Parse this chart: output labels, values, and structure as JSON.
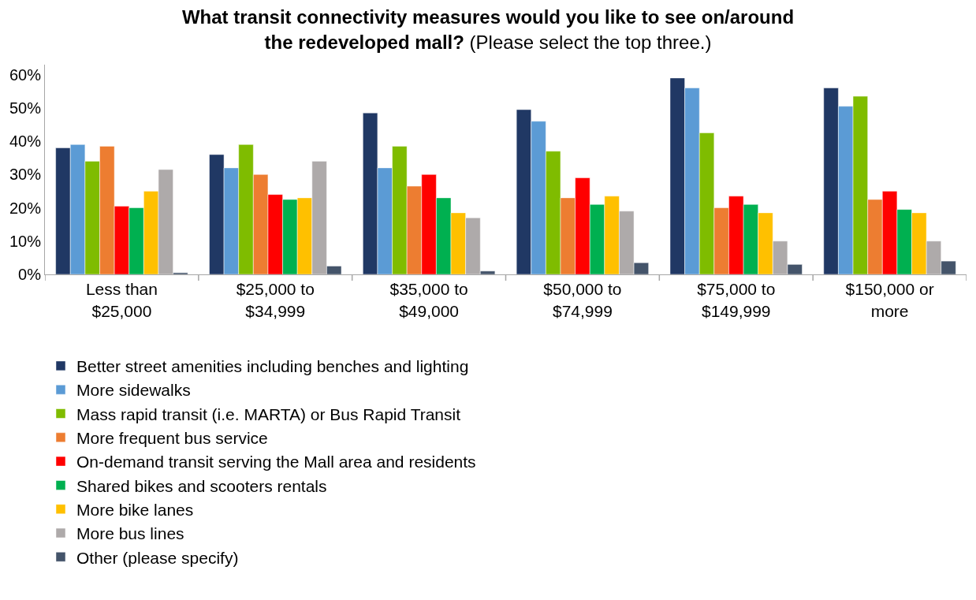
{
  "chart_data": {
    "type": "bar",
    "title": "What transit connectivity measures would you like to see on/around the redeveloped mall?",
    "subtitle": "(Please select the top three.)",
    "categories": [
      "Less than $25,000",
      "$25,000 to $34,999",
      "$35,000 to $49,000",
      "$50,000 to $74,999",
      "$75,000 to $149,999",
      "$150,000 or more"
    ],
    "series": [
      {
        "name": "Better street amenities including benches and lighting",
        "color": "#203864",
        "values": [
          38,
          36,
          48.5,
          49.5,
          59,
          56
        ]
      },
      {
        "name": "More sidewalks",
        "color": "#5b9bd5",
        "values": [
          39,
          32,
          32,
          46,
          56,
          50.5
        ]
      },
      {
        "name": "Mass rapid transit (i.e. MARTA) or Bus Rapid Transit",
        "color": "#7fbc00",
        "values": [
          34,
          39,
          38.5,
          37,
          42.5,
          53.5
        ]
      },
      {
        "name": "More frequent bus service",
        "color": "#ed7d31",
        "values": [
          38.5,
          30,
          26.5,
          23,
          20,
          22.5
        ]
      },
      {
        "name": "On-demand transit serving the Mall area and residents",
        "color": "#ff0000",
        "values": [
          20.5,
          24,
          30,
          29,
          23.5,
          25
        ]
      },
      {
        "name": "Shared bikes and scooters rentals",
        "color": "#00b050",
        "values": [
          20,
          22.5,
          23,
          21,
          21,
          19.5
        ]
      },
      {
        "name": "More bike lanes",
        "color": "#ffc000",
        "values": [
          25,
          23,
          18.5,
          23.5,
          18.5,
          18.5
        ]
      },
      {
        "name": "More bus lines",
        "color": "#aeaaaa",
        "values": [
          31.5,
          34,
          17,
          19,
          10,
          10
        ]
      },
      {
        "name": "Other (please specify)",
        "color": "#44546a",
        "values": [
          0.5,
          2.5,
          1,
          3.5,
          3,
          4
        ]
      }
    ],
    "ylim": [
      0,
      63
    ],
    "yticks": [
      {
        "value": 0,
        "label": "0%"
      },
      {
        "value": 10,
        "label": "10%"
      },
      {
        "value": 20,
        "label": "20%"
      },
      {
        "value": 30,
        "label": "30%"
      },
      {
        "value": 40,
        "label": "40%"
      },
      {
        "value": 50,
        "label": "50%"
      },
      {
        "value": 60,
        "label": "60%"
      }
    ],
    "legend": "bottom left"
  }
}
